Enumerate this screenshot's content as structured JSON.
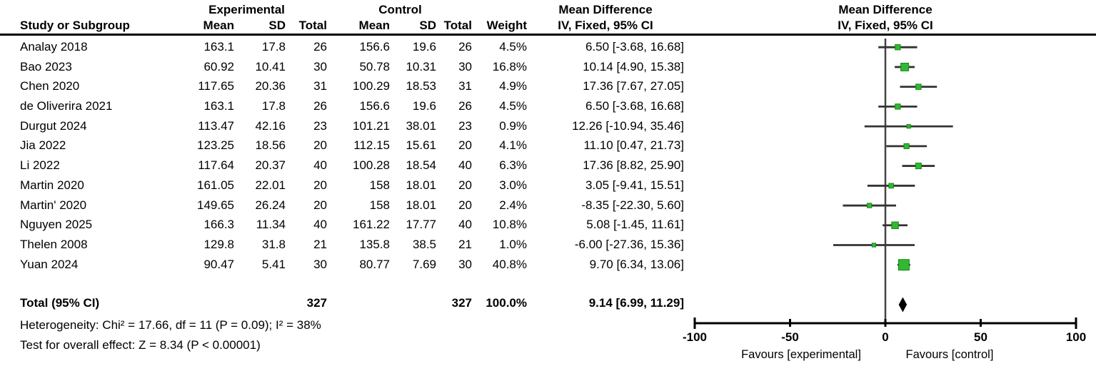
{
  "table": {
    "group_headers": {
      "experimental": "Experimental",
      "control": "Control",
      "mean_difference_left": "Mean Difference",
      "mean_difference_right": "Mean Difference"
    },
    "col_headers": {
      "study": "Study or Subgroup",
      "mean_e": "Mean",
      "sd_e": "SD",
      "total_e": "Total",
      "mean_c": "Mean",
      "sd_c": "SD",
      "total_c": "Total",
      "weight": "Weight",
      "ci_left": "IV, Fixed, 95% CI",
      "ci_right": "IV, Fixed, 95% CI"
    },
    "rows": [
      {
        "study": "Analay 2018",
        "mean_e": "163.1",
        "sd_e": "17.8",
        "total_e": "26",
        "mean_c": "156.6",
        "sd_c": "19.6",
        "total_c": "26",
        "weight": "4.5%",
        "ci": "6.50 [-3.68, 16.68]"
      },
      {
        "study": "Bao 2023",
        "mean_e": "60.92",
        "sd_e": "10.41",
        "total_e": "30",
        "mean_c": "50.78",
        "sd_c": "10.31",
        "total_c": "30",
        "weight": "16.8%",
        "ci": "10.14 [4.90, 15.38]"
      },
      {
        "study": "Chen 2020",
        "mean_e": "117.65",
        "sd_e": "20.36",
        "total_e": "31",
        "mean_c": "100.29",
        "sd_c": "18.53",
        "total_c": "31",
        "weight": "4.9%",
        "ci": "17.36 [7.67, 27.05]"
      },
      {
        "study": "de Oliverira 2021",
        "mean_e": "163.1",
        "sd_e": "17.8",
        "total_e": "26",
        "mean_c": "156.6",
        "sd_c": "19.6",
        "total_c": "26",
        "weight": "4.5%",
        "ci": "6.50 [-3.68, 16.68]"
      },
      {
        "study": "Durgut 2024",
        "mean_e": "113.47",
        "sd_e": "42.16",
        "total_e": "23",
        "mean_c": "101.21",
        "sd_c": "38.01",
        "total_c": "23",
        "weight": "0.9%",
        "ci": "12.26 [-10.94, 35.46]"
      },
      {
        "study": "Jia 2022",
        "mean_e": "123.25",
        "sd_e": "18.56",
        "total_e": "20",
        "mean_c": "112.15",
        "sd_c": "15.61",
        "total_c": "20",
        "weight": "4.1%",
        "ci": "11.10 [0.47, 21.73]"
      },
      {
        "study": "Li 2022",
        "mean_e": "117.64",
        "sd_e": "20.37",
        "total_e": "40",
        "mean_c": "100.28",
        "sd_c": "18.54",
        "total_c": "40",
        "weight": "6.3%",
        "ci": "17.36 [8.82, 25.90]"
      },
      {
        "study": "Martin 2020",
        "mean_e": "161.05",
        "sd_e": "22.01",
        "total_e": "20",
        "mean_c": "158",
        "sd_c": "18.01",
        "total_c": "20",
        "weight": "3.0%",
        "ci": "3.05 [-9.41, 15.51]"
      },
      {
        "study": "Martin' 2020",
        "mean_e": "149.65",
        "sd_e": "26.24",
        "total_e": "20",
        "mean_c": "158",
        "sd_c": "18.01",
        "total_c": "20",
        "weight": "2.4%",
        "ci": "-8.35 [-22.30, 5.60]"
      },
      {
        "study": "Nguyen 2025",
        "mean_e": "166.3",
        "sd_e": "11.34",
        "total_e": "40",
        "mean_c": "161.22",
        "sd_c": "17.77",
        "total_c": "40",
        "weight": "10.8%",
        "ci": "5.08 [-1.45, 11.61]"
      },
      {
        "study": "Thelen 2008",
        "mean_e": "129.8",
        "sd_e": "31.8",
        "total_e": "21",
        "mean_c": "135.8",
        "sd_c": "38.5",
        "total_c": "21",
        "weight": "1.0%",
        "ci": "-6.00 [-27.36, 15.36]"
      },
      {
        "study": "Yuan 2024",
        "mean_e": "90.47",
        "sd_e": "5.41",
        "total_e": "30",
        "mean_c": "80.77",
        "sd_c": "7.69",
        "total_c": "30",
        "weight": "40.8%",
        "ci": "9.70 [6.34, 13.06]"
      }
    ],
    "total": {
      "label": "Total (95% CI)",
      "total_e": "327",
      "total_c": "327",
      "weight": "100.0%",
      "ci": "9.14 [6.99, 11.29]"
    },
    "heterogeneity": "Heterogeneity: Chi² = 17.66, df = 11 (P = 0.09); I² = 38%",
    "overall_effect": "Test for overall effect: Z = 8.34 (P < 0.00001)"
  },
  "chart_data": {
    "type": "forest",
    "title": "Mean Difference, IV, Fixed, 95% CI",
    "xlim": [
      -100,
      100
    ],
    "ticks": [
      -100,
      -50,
      0,
      50,
      100
    ],
    "favours_left": "Favours [experimental]",
    "favours_right": "Favours [control]",
    "marker_color": "#33b833",
    "marker_edge_color": "#118811",
    "line_color": "#333333",
    "diamond_color": "#000000",
    "studies": [
      {
        "name": "Analay 2018",
        "md": 6.5,
        "low": -3.68,
        "high": 16.68,
        "weight": 4.5
      },
      {
        "name": "Bao 2023",
        "md": 10.14,
        "low": 4.9,
        "high": 15.38,
        "weight": 16.8
      },
      {
        "name": "Chen 2020",
        "md": 17.36,
        "low": 7.67,
        "high": 27.05,
        "weight": 4.9
      },
      {
        "name": "de Oliverira 2021",
        "md": 6.5,
        "low": -3.68,
        "high": 16.68,
        "weight": 4.5
      },
      {
        "name": "Durgut 2024",
        "md": 12.26,
        "low": -10.94,
        "high": 35.46,
        "weight": 0.9
      },
      {
        "name": "Jia 2022",
        "md": 11.1,
        "low": 0.47,
        "high": 21.73,
        "weight": 4.1
      },
      {
        "name": "Li 2022",
        "md": 17.36,
        "low": 8.82,
        "high": 25.9,
        "weight": 6.3
      },
      {
        "name": "Martin 2020",
        "md": 3.05,
        "low": -9.41,
        "high": 15.51,
        "weight": 3.0
      },
      {
        "name": "Martin' 2020",
        "md": -8.35,
        "low": -22.3,
        "high": 5.6,
        "weight": 2.4
      },
      {
        "name": "Nguyen 2025",
        "md": 5.08,
        "low": -1.45,
        "high": 11.61,
        "weight": 10.8
      },
      {
        "name": "Thelen 2008",
        "md": -6.0,
        "low": -27.36,
        "high": 15.36,
        "weight": 1.0
      },
      {
        "name": "Yuan 2024",
        "md": 9.7,
        "low": 6.34,
        "high": 13.06,
        "weight": 40.8
      }
    ],
    "total": {
      "md": 9.14,
      "low": 6.99,
      "high": 11.29
    }
  }
}
